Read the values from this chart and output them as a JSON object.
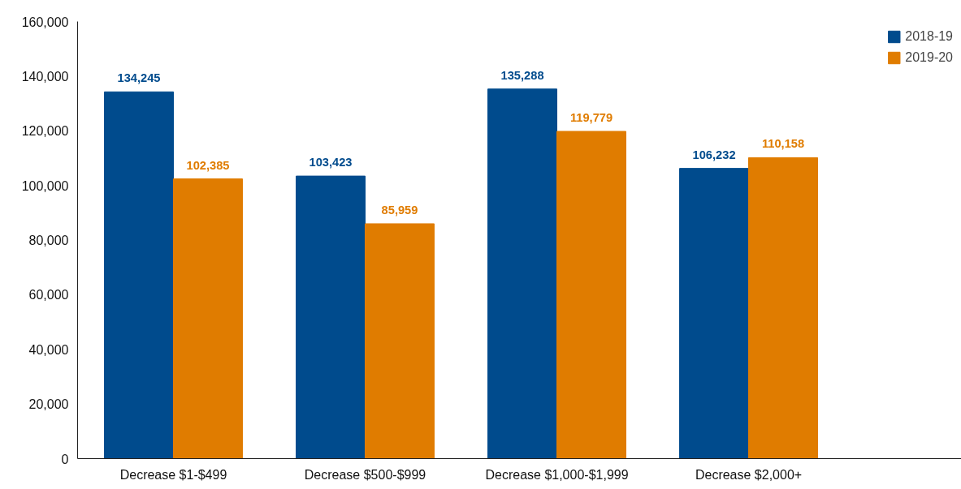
{
  "chart_data": {
    "type": "bar",
    "categories": [
      "Decrease $1-$499",
      "Decrease $500-$999",
      "Decrease $1,000-$1,999",
      "Decrease $2,000+"
    ],
    "series": [
      {
        "name": "2018-19",
        "color": "#004b8d",
        "values": [
          134245,
          103423,
          135288,
          106232
        ],
        "value_labels": [
          "134,245",
          "103,423",
          "135,288",
          "106,232"
        ]
      },
      {
        "name": "2019-20",
        "color": "#e07c00",
        "values": [
          102385,
          85959,
          119779,
          110158
        ],
        "value_labels": [
          "102,385",
          "85,959",
          "119,779",
          "110,158"
        ]
      }
    ],
    "ylim": [
      0,
      160000
    ],
    "yticks": [
      {
        "value": 0,
        "label": "0"
      },
      {
        "value": 20000,
        "label": "20,000"
      },
      {
        "value": 40000,
        "label": "40,000"
      },
      {
        "value": 60000,
        "label": "60,000"
      },
      {
        "value": 80000,
        "label": "80,000"
      },
      {
        "value": 100000,
        "label": "100,000"
      },
      {
        "value": 120000,
        "label": "120,000"
      },
      {
        "value": 140000,
        "label": "140,000"
      },
      {
        "value": 160000,
        "label": "160,000"
      }
    ],
    "legend": "top right",
    "grid": false
  }
}
